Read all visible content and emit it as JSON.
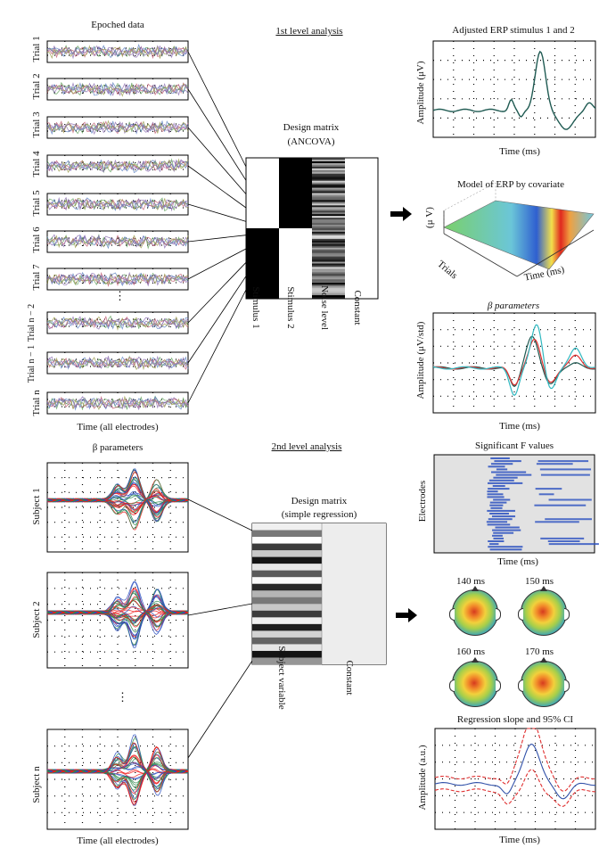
{
  "top": {
    "epoched_title": "Epoched data",
    "epoched_xlabel": "Time (all electrodes)",
    "trials": [
      "Trial 1",
      "Trial 2",
      "Trial 3",
      "Trial 4",
      "Trial 5",
      "Trial 6",
      "Trial 7",
      "Trial n − 2",
      "Trial n − 1",
      "Trial n"
    ],
    "dots": "⋮",
    "first_level_title": "1st level analysis",
    "design_matrix_title": "Design matrix",
    "design_matrix_subtitle": "(ANCOVA)",
    "design_columns": [
      "Stimulus 1",
      "Stimulus 2",
      "Noise level",
      "Constant"
    ],
    "erp_title": "Adjusted ERP stimulus 1 and 2",
    "erp_ylabel": "Amplitude (μV)",
    "erp_xlabel": "Time (ms)",
    "model_title": "Model of ERP by covariate",
    "model_zlabel": "(μ V)",
    "model_xlabel": "Trials",
    "model_ylabel": "Time (ms)",
    "beta_title": "β parameters",
    "beta_ylabel": "Amplitude (μV/std)",
    "beta_xlabel": "Time (ms)"
  },
  "bottom": {
    "beta_title": "β parameters",
    "subjects": [
      "Subject 1",
      "Subject 2",
      "Subject n"
    ],
    "dots": "⋮",
    "xlabel": "Time (all electrodes)",
    "second_level_title": "2nd level analysis",
    "design_matrix_title": "Design matrix",
    "design_matrix_subtitle": "(simple regression)",
    "design_columns": [
      "Subject variable",
      "Constant"
    ],
    "fvals_title": "Significant F values",
    "fvals_ylabel": "Electrodes",
    "fvals_xlabel": "Time (ms)",
    "topo_labels": [
      "140 ms",
      "150 ms",
      "160 ms",
      "170 ms"
    ],
    "regression_title": "Regression slope and 95% CI",
    "regression_ylabel": "Amplitude (a.u.)",
    "regression_xlabel": "Time (ms)"
  },
  "colors": {
    "erp_line": "#1f5a52",
    "beta_red": "#e03030",
    "beta_cyan": "#30b8c0",
    "beta_dark": "#1f5a52",
    "reg_blue": "#3050a8",
    "reg_red": "#e03030",
    "subject_blue": "#2a4fc0",
    "subject_green": "#2e8a4a",
    "subject_red": "#ee1a1a",
    "fvals_blue": "#2a50c0"
  }
}
